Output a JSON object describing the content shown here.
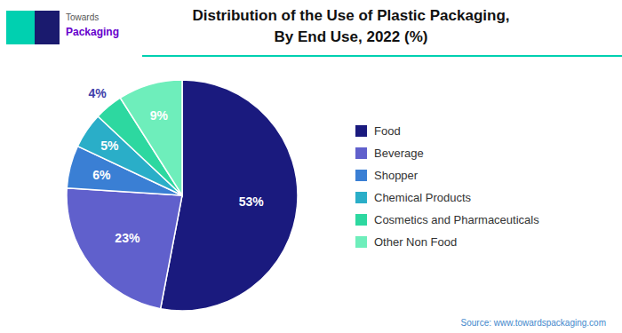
{
  "chart_data": {
    "type": "pie",
    "title": "Distribution of the Use of Plastic Packaging,\nBy End Use, 2022 (%)",
    "categories": [
      "Food",
      "Beverage",
      "Shopper",
      "Chemical Products",
      "Cosmetics and Pharmaceuticals",
      "Other Non Food"
    ],
    "values": [
      53,
      23,
      6,
      5,
      4,
      9
    ],
    "value_labels": [
      "53%",
      "23%",
      "6%",
      "5%",
      "4%",
      "9%"
    ],
    "colors": [
      "#1a1a7e",
      "#6060cc",
      "#3a7fd4",
      "#2aaec8",
      "#2dd8a0",
      "#6eeebb"
    ],
    "data_labels": true,
    "legend": "right",
    "annotations": [
      "Towards",
      "Packaging",
      "Source: www.towardspackaging.com"
    ]
  }
}
